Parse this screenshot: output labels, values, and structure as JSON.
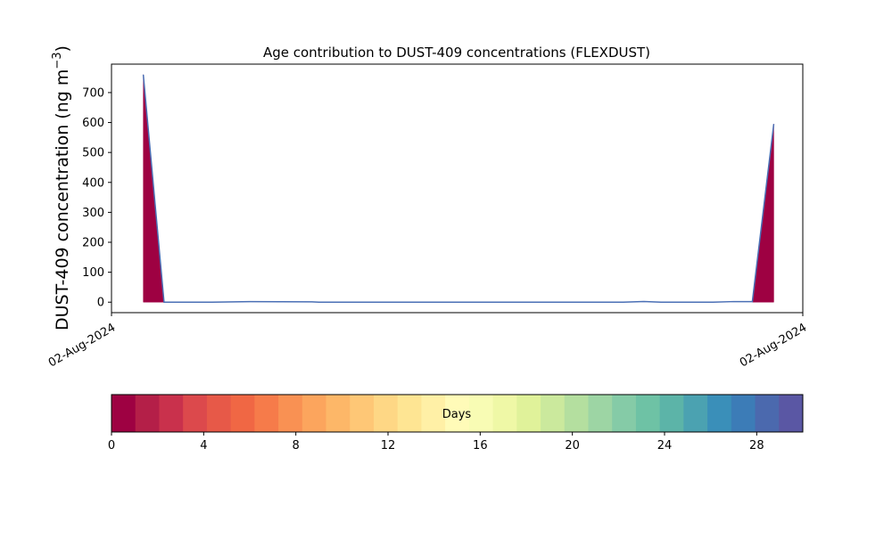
{
  "chart_data": {
    "type": "area",
    "title": "Age contribution to DUST-409 concentrations (FLEXDUST)",
    "ylabel_main": "DUST-409 concentration (ng m",
    "ylabel_sup": "−3",
    "ylabel_close": ")",
    "xlabel": "",
    "xlim": [
      0,
      1
    ],
    "ylim": [
      -35,
      795
    ],
    "x_ticks": [
      {
        "label": "02-Aug-2024",
        "x": 0
      },
      {
        "label": "02-Aug-2024",
        "x": 1
      }
    ],
    "y_ticks": [
      0,
      100,
      200,
      300,
      400,
      500,
      600,
      700
    ],
    "series": [
      {
        "color": "#9e0142",
        "points": [
          [
            0.046,
            0
          ],
          [
            0.046,
            760
          ],
          [
            0.076,
            0
          ],
          [
            0.958,
            0
          ],
          [
            0.958,
            595
          ]
        ],
        "fill_regions": [
          [
            [
              0.046,
              0
            ],
            [
              0.046,
              760
            ],
            [
              0.076,
              0
            ]
          ],
          [
            [
              0.927,
              0
            ],
            [
              0.958,
              595
            ],
            [
              0.958,
              0
            ]
          ]
        ]
      },
      {
        "color": "#4a6fb5",
        "line": [
          [
            0.046,
            760
          ],
          [
            0.076,
            0
          ],
          [
            0.145,
            0
          ],
          [
            0.2,
            2
          ],
          [
            0.29,
            1
          ],
          [
            0.3,
            0
          ],
          [
            0.74,
            0
          ],
          [
            0.77,
            2
          ],
          [
            0.795,
            0
          ],
          [
            0.87,
            0
          ],
          [
            0.9,
            2
          ],
          [
            0.927,
            2
          ],
          [
            0.958,
            595
          ]
        ]
      }
    ],
    "colorbar": {
      "label": "Days",
      "range": [
        0,
        30
      ],
      "ticks": [
        0,
        4,
        8,
        12,
        16,
        20,
        24,
        28
      ],
      "colors": [
        "#9e0142",
        "#b41f48",
        "#c9314c",
        "#dc494c",
        "#e75948",
        "#f06744",
        "#f67b4a",
        "#f99153",
        "#fca55d",
        "#fdb768",
        "#fec776",
        "#fed785",
        "#fee593",
        "#fff0a6",
        "#fffbb8",
        "#f8fcb4",
        "#eff8a6",
        "#e0f29a",
        "#cbe99d",
        "#b4df9f",
        "#9dd5a4",
        "#85cba7",
        "#6ec2a5",
        "#5cb4a8",
        "#4ba2b1",
        "#3a8fb9",
        "#3c7cb7",
        "#4b69ae",
        "#5a57a4"
      ]
    }
  }
}
